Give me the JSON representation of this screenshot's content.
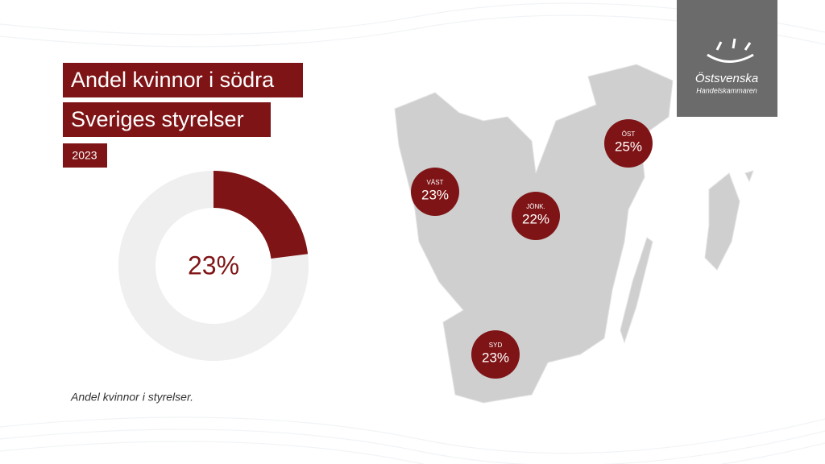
{
  "title_lines": [
    "Andel kvinnor i södra",
    "Sveriges styrelser"
  ],
  "year": "2023",
  "chart_data": {
    "type": "donut",
    "values": [
      23
    ],
    "value_labels": [
      "23%"
    ],
    "total": 100,
    "color": "#7f1416",
    "track_color": "#efefef"
  },
  "footnote": "Andel kvinnor i styrelser.",
  "regions": [
    {
      "name": "VÄST",
      "label": "23%"
    },
    {
      "name": "JÖNK.",
      "label": "22%"
    },
    {
      "name": "ÖST",
      "label": "25%"
    },
    {
      "name": "SYD",
      "label": "23%"
    }
  ],
  "logo": {
    "line1": "Östsvenska",
    "line2": "Handelskammaren"
  }
}
